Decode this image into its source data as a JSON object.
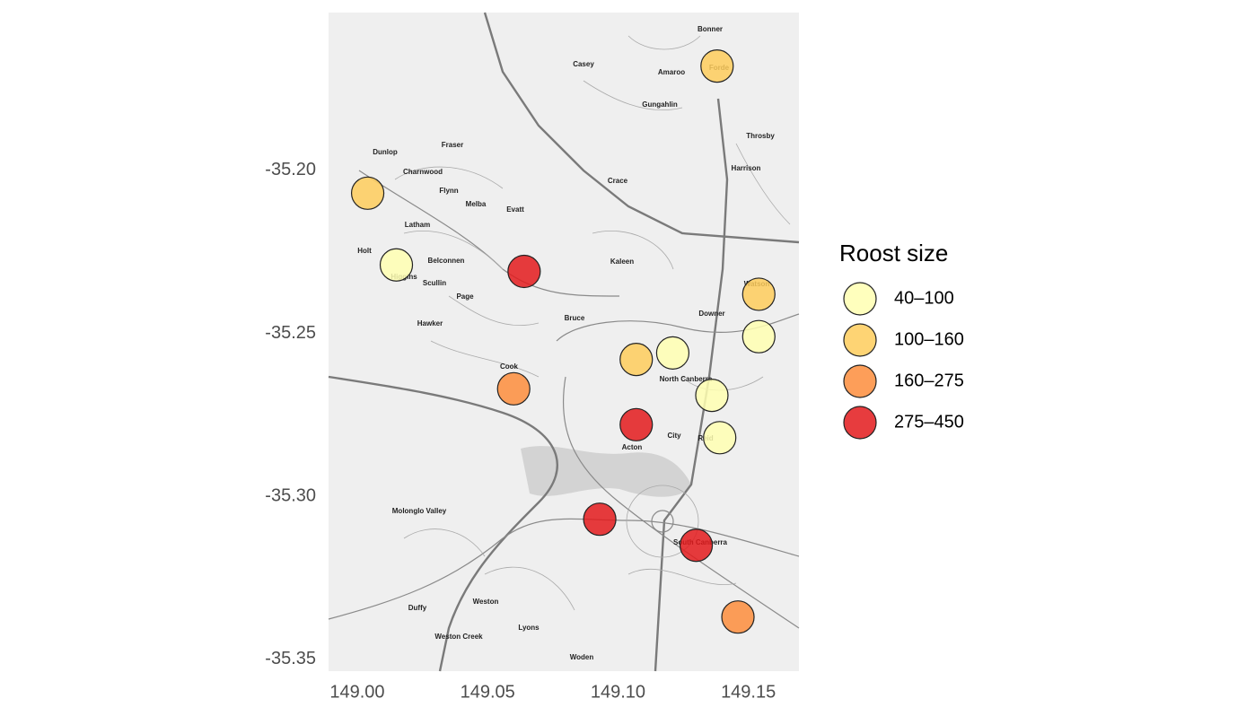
{
  "chart_data": {
    "type": "scatter",
    "legend_title": "Roost size",
    "legend_position": "right",
    "grid": false,
    "xlim": [
      148.989,
      149.1694
    ],
    "ylim": [
      -35.3536,
      -35.1516
    ],
    "xticks": [
      {
        "value": 149,
        "label": "149.00"
      },
      149.05,
      {
        "value": 149.1,
        "label": "149.10"
      },
      149.15
    ],
    "yticks": [
      {
        "value": -35.2,
        "label": "-35.20"
      },
      -35.25,
      {
        "value": -35.3,
        "label": "-35.30"
      },
      -35.35
    ],
    "series": [
      {
        "name": "40–100",
        "color": "#ffffb2",
        "x": [
          149.015,
          149.154,
          149.121,
          149.136,
          149.139
        ],
        "values": [
          -35.229,
          -35.251,
          -35.256,
          -35.269,
          -35.282
        ]
      },
      {
        "name": "100–160",
        "color": "#fecc5c",
        "x": [
          149.138,
          149.004,
          149.154,
          149.107
        ],
        "values": [
          -35.168,
          -35.207,
          -35.238,
          -35.258
        ]
      },
      {
        "name": "160–275",
        "color": "#fd8d3c",
        "x": [
          149.06,
          149.146
        ],
        "values": [
          -35.267,
          -35.337
        ]
      },
      {
        "name": "275–450",
        "color": "#e31a1c",
        "x": [
          149.064,
          149.107,
          149.093,
          149.13
        ],
        "values": [
          -35.231,
          -35.278,
          -35.307,
          -35.315
        ]
      }
    ],
    "map_labels": [
      "Bonner",
      "Casey",
      "Amaroo",
      "Forde",
      "Gungahlin",
      "Throsby",
      "Fraser",
      "Dunlop",
      "Charnwood",
      "Harrison",
      "Crace",
      "Flynn",
      "Melba",
      "Evatt",
      "Latham",
      "Holt",
      "Belconnen",
      "Kaleen",
      "Higgins",
      "Scullin",
      "Page",
      "Watson",
      "Bruce",
      "Downer",
      "Hawker",
      "Cook",
      "North Canberra",
      "City",
      "Reid",
      "Acton",
      "Molonglo Valley",
      "South Canberra",
      "Weston",
      "Duffy",
      "Lyons",
      "Weston Creek",
      "Woden"
    ]
  }
}
